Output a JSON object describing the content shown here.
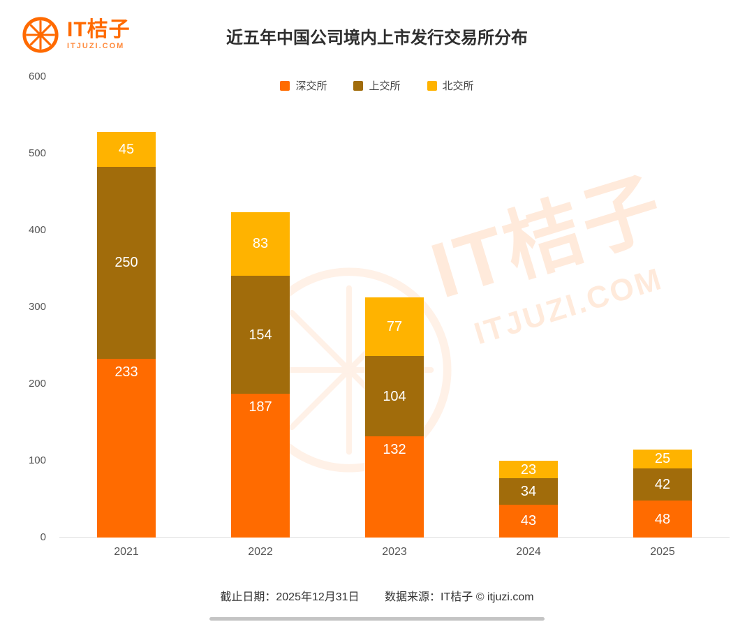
{
  "logo": {
    "name": "IT桔子",
    "domain": "ITJUZI.COM"
  },
  "title": "近五年中国公司境内上市发行交易所分布",
  "watermark": {
    "main": "IT桔子",
    "sub": "ITJUZI.COM"
  },
  "footer": {
    "date": "截止日期：2025年12月31日",
    "source": "数据来源：IT桔子 © itjuzi.com"
  },
  "colors": {
    "brand_orange": "#FF6A00",
    "szse": "#FF6B00",
    "sse": "#A16C0B",
    "bse": "#FFB300"
  },
  "chart_data": {
    "type": "bar",
    "stacked": true,
    "title": "近五年中国公司境内上市发行交易所分布",
    "categories": [
      "2021",
      "2022",
      "2023",
      "2024",
      "2025"
    ],
    "series": [
      {
        "name": "深交所",
        "color": "#FF6B00",
        "values": [
          233,
          187,
          132,
          43,
          48
        ]
      },
      {
        "name": "上交所",
        "color": "#A16C0B",
        "values": [
          250,
          154,
          104,
          34,
          42
        ]
      },
      {
        "name": "北交所",
        "color": "#FFB300",
        "values": [
          45,
          83,
          77,
          23,
          25
        ]
      }
    ],
    "totals": [
      528,
      424,
      313,
      100,
      115
    ],
    "xlabel": "",
    "ylabel": "",
    "ylim": [
      0,
      600
    ],
    "yticks": [
      0,
      100,
      200,
      300,
      400,
      500,
      600
    ],
    "grid": false,
    "legend_position": "top"
  }
}
